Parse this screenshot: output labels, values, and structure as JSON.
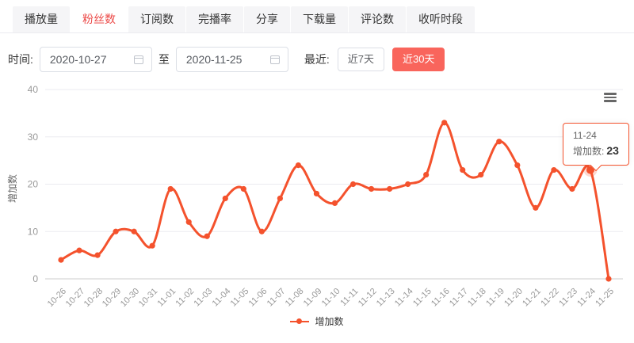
{
  "tabs": {
    "items": [
      {
        "label": "播放量",
        "name": "play-count",
        "active": false
      },
      {
        "label": "粉丝数",
        "name": "fans",
        "active": true
      },
      {
        "label": "订阅数",
        "name": "subscriptions",
        "active": false
      },
      {
        "label": "完播率",
        "name": "completion-rate",
        "active": false
      },
      {
        "label": "分享",
        "name": "share",
        "active": false
      },
      {
        "label": "下载量",
        "name": "downloads",
        "active": false
      },
      {
        "label": "评论数",
        "name": "comments",
        "active": false
      },
      {
        "label": "收听时段",
        "name": "listening-time",
        "active": false
      }
    ]
  },
  "filters": {
    "time_label": "时间:",
    "start_date": "2020-10-27",
    "to_label": "至",
    "end_date": "2020-11-25",
    "recent_label": "最近:",
    "recent_7_label": "近7天",
    "recent_30_label": "近30天",
    "recent_active": "近30天"
  },
  "icons": {
    "calendar": "calendar-icon",
    "chart_menu": "hamburger-icon"
  },
  "colors": {
    "accent": "#f4522d",
    "tab_active_text": "#ec4b49",
    "recent30_bg": "#f9655c",
    "gridline": "#ebebf0",
    "axis_line": "#cccccc",
    "axis_text": "#999999"
  },
  "chart_data": {
    "type": "line",
    "smooth": true,
    "title": "",
    "xlabel": "",
    "ylabel": "增加数",
    "ylim": [
      0,
      40
    ],
    "yticks": [
      0,
      10,
      20,
      30,
      40
    ],
    "grid": true,
    "legend_position": "bottom",
    "categories": [
      "10-26",
      "10-27",
      "10-28",
      "10-29",
      "10-30",
      "10-31",
      "11-01",
      "11-02",
      "11-03",
      "11-04",
      "11-05",
      "11-06",
      "11-07",
      "11-08",
      "11-09",
      "11-10",
      "11-11",
      "11-12",
      "11-13",
      "11-14",
      "11-15",
      "11-16",
      "11-17",
      "11-18",
      "11-19",
      "11-20",
      "11-21",
      "11-22",
      "11-23",
      "11-24",
      "11-25"
    ],
    "series": [
      {
        "name": "增加数",
        "color": "#f4522d",
        "values": [
          4,
          6,
          5,
          10,
          10,
          7,
          19,
          12,
          9,
          17,
          19,
          10,
          17,
          24,
          18,
          16,
          20,
          19,
          19,
          20,
          22,
          33,
          23,
          22,
          29,
          24,
          15,
          23,
          19,
          23,
          0
        ]
      }
    ],
    "highlight": {
      "category": "11-24",
      "value": 23,
      "index": 29
    }
  },
  "tooltip": {
    "line1": "11-24",
    "line2_label": "增加数:",
    "line2_value": "23"
  },
  "legend": {
    "label": "增加数"
  }
}
